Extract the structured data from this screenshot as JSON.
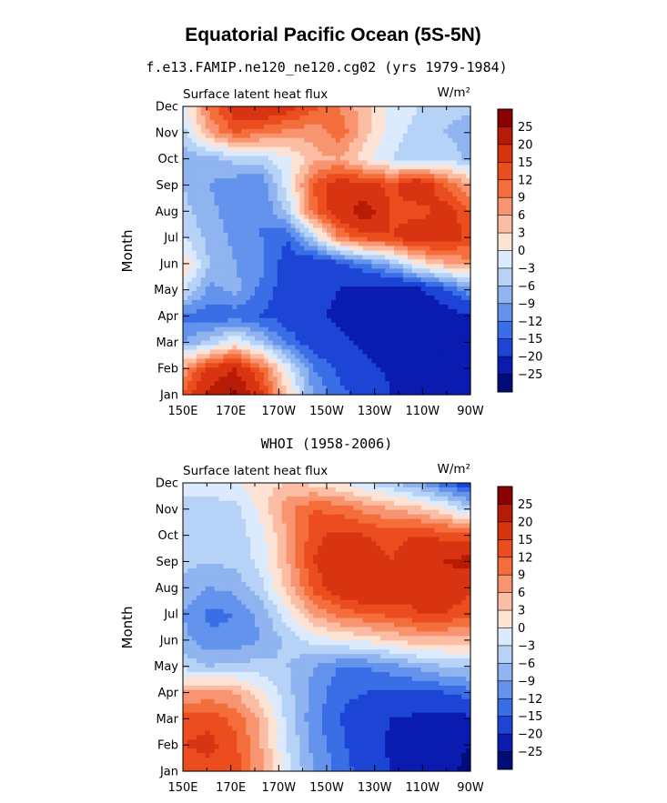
{
  "page": {
    "title": "Equatorial Pacific Ocean (5S-5N)"
  },
  "chart_data": [
    {
      "type": "heatmap",
      "title": "f.e13.FAMIP.ne120_ne120.cg02 (yrs 1979-1984)",
      "left_label": "Surface latent heat flux",
      "right_label": "W/m²",
      "xlabel": "",
      "ylabel": "Month",
      "x_ticks": [
        "150E",
        "170E",
        "170W",
        "150W",
        "130W",
        "110W",
        "90W"
      ],
      "y_ticks": [
        "Jan",
        "Feb",
        "Mar",
        "Apr",
        "May",
        "Jun",
        "Jul",
        "Aug",
        "Sep",
        "Oct",
        "Nov",
        "Dec"
      ],
      "colorbar_levels": [
        "25",
        "20",
        "15",
        "12",
        "9",
        "6",
        "3",
        "0",
        "-3",
        "-6",
        "-9",
        "-12",
        "-15",
        "-20",
        "-25"
      ],
      "colorbar_colors": [
        "#8b0000",
        "#b81b05",
        "#d93412",
        "#eb4d1e",
        "#f46e3b",
        "#f89570",
        "#fbbda3",
        "#fde3d4",
        "#dbeafc",
        "#b6d2f7",
        "#8fb4f0",
        "#6393ec",
        "#3a6ee6",
        "#1c45d6",
        "#0a1cb0",
        "#020b7a"
      ],
      "values": [
        [
          12,
          22,
          26,
          16,
          3,
          -9,
          -14,
          -17,
          -20,
          -22,
          -23,
          -22
        ],
        [
          7,
          16,
          20,
          11,
          -1,
          -12,
          -16,
          -19,
          -21,
          -23,
          -23,
          -21
        ],
        [
          -9,
          -5,
          0,
          -6,
          -13,
          -17,
          -19,
          -21,
          -23,
          -25,
          -24,
          -21
        ],
        [
          -13,
          -14,
          -14,
          -15,
          -17,
          -19,
          -21,
          -22,
          -24,
          -25,
          -23,
          -20
        ],
        [
          -2,
          -10,
          -8,
          -13,
          -17,
          -19,
          -20,
          -22,
          -22,
          -21,
          -16,
          -10
        ],
        [
          3,
          -6,
          -9,
          -11,
          -17,
          -19,
          -16,
          -12,
          -7,
          1,
          5,
          8
        ],
        [
          -3,
          -7,
          -10,
          -12,
          -15,
          -4,
          9,
          14,
          15,
          19,
          18,
          14
        ],
        [
          -5,
          -8,
          -11,
          -12,
          -5,
          11,
          18,
          23,
          14,
          13,
          17,
          12
        ],
        [
          -6,
          -9,
          -11,
          -12,
          -1,
          12,
          18,
          16,
          14,
          20,
          12,
          6
        ],
        [
          -9,
          -7,
          -5,
          -4,
          -1,
          5,
          6,
          1,
          -3,
          -5,
          -3,
          -7
        ],
        [
          -4,
          6,
          12,
          10,
          8,
          7,
          11,
          4,
          -2,
          -4,
          -6,
          -9
        ],
        [
          -2,
          10,
          18,
          20,
          17,
          13,
          9,
          4,
          -1,
          -3,
          -4,
          -5
        ]
      ]
    },
    {
      "type": "heatmap",
      "title": "WHOI (1958-2006)",
      "left_label": "Surface latent heat flux",
      "right_label": "W/m²",
      "xlabel": "",
      "ylabel": "Month",
      "x_ticks": [
        "150E",
        "170E",
        "170W",
        "150W",
        "130W",
        "110W",
        "90W"
      ],
      "y_ticks": [
        "Jan",
        "Feb",
        "Mar",
        "Apr",
        "May",
        "Jun",
        "Jul",
        "Aug",
        "Sep",
        "Oct",
        "Nov",
        "Dec"
      ],
      "colorbar_levels": [
        "25",
        "20",
        "15",
        "12",
        "9",
        "6",
        "3",
        "0",
        "-3",
        "-6",
        "-9",
        "-12",
        "-15",
        "-20",
        "-25"
      ],
      "colorbar_colors": [
        "#8b0000",
        "#b81b05",
        "#d93412",
        "#eb4d1e",
        "#f46e3b",
        "#f89570",
        "#fbbda3",
        "#fde3d4",
        "#dbeafc",
        "#b6d2f7",
        "#8fb4f0",
        "#6393ec",
        "#3a6ee6",
        "#1c45d6",
        "#0a1cb0",
        "#020b7a"
      ],
      "values": [
        [
          12,
          14,
          13,
          7,
          -2,
          -9,
          -13,
          -17,
          -20,
          -22,
          -24,
          -26
        ],
        [
          15,
          16,
          13,
          6,
          -3,
          -10,
          -14,
          -18,
          -21,
          -23,
          -24,
          -25
        ],
        [
          13,
          14,
          11,
          5,
          -4,
          -11,
          -15,
          -18,
          -20,
          -21,
          -22,
          -21
        ],
        [
          6,
          7,
          6,
          1,
          -5,
          -10,
          -14,
          -15,
          -16,
          -16,
          -15,
          -13
        ],
        [
          -4,
          -6,
          -5,
          -5,
          -6,
          -9,
          -12,
          -12,
          -10,
          -8,
          -6,
          -5
        ],
        [
          -8,
          -11,
          -11,
          -9,
          -5,
          -2,
          0,
          1,
          3,
          5,
          5,
          4
        ],
        [
          -9,
          -13,
          -12,
          -8,
          -1,
          7,
          10,
          12,
          13,
          15,
          15,
          13
        ],
        [
          -7,
          -9,
          -8,
          -4,
          4,
          13,
          18,
          20,
          18,
          16,
          17,
          16
        ],
        [
          -5,
          -6,
          -5,
          -2,
          6,
          15,
          18,
          16,
          15,
          18,
          20,
          22
        ],
        [
          -5,
          -6,
          -5,
          -1,
          6,
          14,
          16,
          15,
          14,
          15,
          14,
          13
        ],
        [
          -4,
          -5,
          -4,
          1,
          8,
          12,
          11,
          8,
          6,
          4,
          1,
          -5
        ],
        [
          -2,
          -1,
          0,
          2,
          3,
          2,
          0,
          -3,
          -6,
          -9,
          -14,
          -18
        ]
      ]
    }
  ]
}
